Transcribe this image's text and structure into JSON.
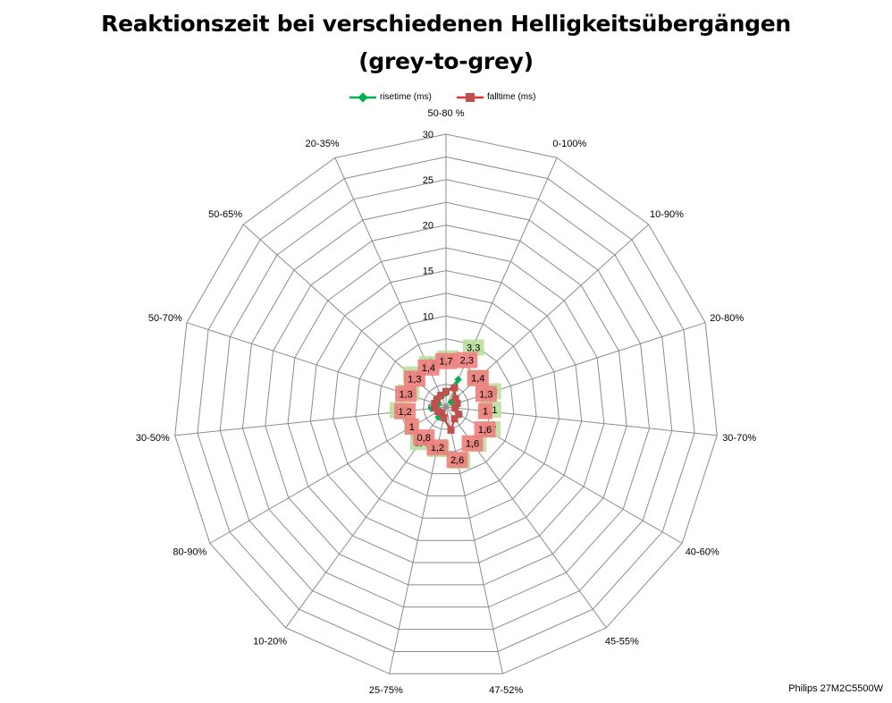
{
  "chart_data": {
    "type": "radar",
    "title": "Reaktionszeit bei verschiedenen Helligkeitsübergängen",
    "subtitle": "(grey-to-grey)",
    "categories": [
      "50-80 %",
      "0-100%",
      "10-90%",
      "20-80%",
      "30-70%",
      "40-60%",
      "45-55%",
      "47-52%",
      "25-75%",
      "10-20%",
      "80-90%",
      "30-50%",
      "50-70%",
      "50-65%",
      "20-35%"
    ],
    "rlim": [
      0,
      30
    ],
    "ticks": [
      0,
      5,
      10,
      15,
      20,
      25,
      30
    ],
    "grid": true,
    "legend_position": "top",
    "series": [
      {
        "name": "risetime (ms)",
        "color": "#00b050",
        "label_bg": "#b9dd98",
        "values": [
          1.5,
          3.3,
          0.8,
          1.3,
          1.1,
          1.7,
          1.6,
          2.6,
          1.3,
          1.4,
          1.0,
          1.6,
          0.9,
          1.4,
          1.3
        ],
        "labels": [
          "1,5",
          "3,3",
          "0,8",
          "1,3",
          "1,1",
          "1,7",
          "1,6",
          "2,6",
          "1,3",
          "1,4",
          "1",
          "1,6",
          "0,9",
          "1,4",
          "1,3"
        ]
      },
      {
        "name": "falltime (ms)",
        "color": "#c0504d",
        "label_bg": "#f08080",
        "values": [
          1.7,
          2.3,
          1.4,
          1.3,
          1.0,
          1.6,
          1.6,
          2.6,
          1.2,
          0.8,
          1.0,
          1.2,
          1.3,
          1.3,
          1.4
        ],
        "labels": [
          "1,7",
          "2,3",
          "1,4",
          "1,3",
          "1",
          "1,6",
          "1,6",
          "2,6",
          "1,2",
          "0,8",
          "1",
          "1,2",
          "1,3",
          "1,3",
          "1,4"
        ]
      }
    ]
  },
  "credit": "Philips 27M2C5500W"
}
